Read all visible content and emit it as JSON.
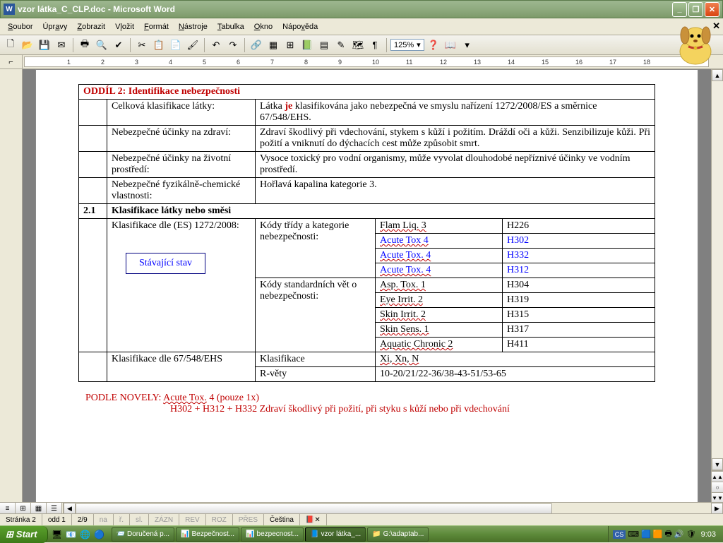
{
  "window": {
    "title": "vzor látka_C_CLP.doc - Microsoft Word"
  },
  "menu": {
    "items": [
      "Soubor",
      "Úpravy",
      "Zobrazit",
      "Vložit",
      "Formát",
      "Nástroje",
      "Tabulka",
      "Okno",
      "Nápověda"
    ]
  },
  "toolbar": {
    "zoom": "125%"
  },
  "document": {
    "section_title": "ODDÍL 2: Identifikace nebezpečnosti",
    "rows1": [
      {
        "label": "Celková klasifikace látky:",
        "text_pre": "Látka ",
        "je": "je",
        "text_post": "  klasifikována jako nebezpečná ve smyslu nařízení 1272/2008/ES a směrnice 67/548/EHS."
      },
      {
        "label": "Nebezpečné účinky na zdraví:",
        "text": "Zdraví škodlivý při vdechování, stykem  s kůží i požitím. Dráždí oči a kůži. Senzibilizuje kůži. Při požití a vniknutí do dýchacích cest může způsobit smrt."
      },
      {
        "label": "Nebezpečné účinky na životní prostředí:",
        "text": "Vysoce toxický pro vodní organismy, může vyvolat dlouhodobé nepříznivé účinky ve vodním prostředí."
      },
      {
        "label": "Nebezpečné fyzikálně-chemické vlastnosti:",
        "text": "Hořlavá kapalina kategorie 3."
      }
    ],
    "section21_num": "2.1",
    "section21_title": "Klasifikace látky nebo směsi",
    "klas_es_label": "Klasifikace dle (ES) 1272/2008:",
    "stav_box": "Stávající stav",
    "kody_tridy": "Kódy třídy a kategorie nebezpečnosti:",
    "kody_std": "Kódy standardních vět o nebezpečnosti:",
    "hazards": [
      {
        "cat": "Flam Liq. 3",
        "code": "H226",
        "blue": false
      },
      {
        "cat": "Acute Tox 4",
        "code": "H302",
        "blue": true,
        "sq": false
      },
      {
        "cat": "Acute Tox. 4",
        "code": "H332",
        "blue": true,
        "sq": true
      },
      {
        "cat": "Acute Tox. 4",
        "code": "H312",
        "blue": true,
        "sq": true
      },
      {
        "cat": "Asp. Tox. 1",
        "code": "H304",
        "blue": false
      },
      {
        "cat": "Eye Irrit. 2",
        "code": "H319",
        "blue": false
      },
      {
        "cat": "Skin Irrit. 2",
        "code": "H315",
        "blue": false
      },
      {
        "cat": "Skin Sens. 1",
        "code": "H317",
        "blue": false
      },
      {
        "cat": "Aquatic Chronic 2",
        "code": "H411",
        "blue": false
      }
    ],
    "klas_67_label": "Klasifikace dle 67/548/EHS",
    "klasifikace_label": "Klasifikace",
    "klasifikace_val": "Xi, Xn, N",
    "rvety_label": "R-věty",
    "rvety_val": "10-20/21/22-36/38-43-51/53-65",
    "note1": "PODLE NOVELY: Acute Tox. 4 (pouze 1x)",
    "note2": "H302 + H312 + H332   Zdraví škodlivý při požití, při styku s kůží nebo při vdechování"
  },
  "statusbar": {
    "page": "Stránka  2",
    "odd": "odd  1",
    "pages": "2/9",
    "na": "na",
    "r": "ř.",
    "sl": "sl.",
    "zazn": "ZÁZN",
    "rev": "REV",
    "roz": "ROZ",
    "pres": "PŘES",
    "lang": "Čeština"
  },
  "taskbar": {
    "start": "Start",
    "tasks": [
      {
        "icon": "📨",
        "label": "Doručená p...",
        "active": false
      },
      {
        "icon": "📊",
        "label": "Bezpečnost...",
        "active": false
      },
      {
        "icon": "📊",
        "label": "bezpecnost...",
        "active": false
      },
      {
        "icon": "📘",
        "label": "vzor látka_...",
        "active": true
      },
      {
        "icon": "📁",
        "label": "G:\\adaptab...",
        "active": false
      }
    ],
    "lang": "CS",
    "clock": "9:03"
  },
  "ruler_marks": [
    "1",
    "2",
    "3",
    "4",
    "5",
    "6",
    "7",
    "8",
    "9",
    "10",
    "11",
    "12",
    "13",
    "14",
    "15",
    "16",
    "17",
    "18"
  ]
}
